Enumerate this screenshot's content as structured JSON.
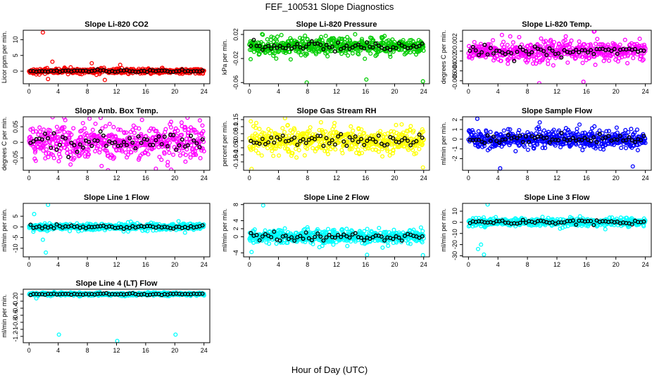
{
  "figure": {
    "title": "FEF_100531  Slope Diagnostics",
    "xlabel": "Hour of Day (UTC)"
  },
  "chart_data": [
    {
      "type": "scatter",
      "title": "Slope Li-820 CO2",
      "ylabel": "Licor ppm per min.",
      "xlim": [
        -0.8,
        24.8
      ],
      "ylim": [
        -4,
        13
      ],
      "xticks": [
        0,
        4,
        8,
        12,
        16,
        20,
        24
      ],
      "yticks": [
        0,
        5,
        10
      ],
      "spread": 0.45,
      "outliers": [
        [
          1.9,
          12.3
        ],
        [
          2.6,
          -2.5
        ],
        [
          3.2,
          3
        ],
        [
          8.6,
          2.5
        ],
        [
          10.4,
          -2.8
        ],
        [
          12.5,
          2
        ]
      ],
      "color": "#ff0000",
      "series": [
        {
          "name": "all"
        },
        {
          "name": "hourly"
        }
      ]
    },
    {
      "type": "scatter",
      "title": "Slope Li-820 Pressure",
      "ylabel": "kPa per min.",
      "xlim": [
        -0.8,
        24.8
      ],
      "ylim": [
        -0.062,
        0.027
      ],
      "xticks": [
        0,
        4,
        8,
        12,
        16,
        20,
        24
      ],
      "yticks": [
        -0.06,
        -0.02,
        0.02
      ],
      "spread": 0.008,
      "outliers": [
        [
          7.9,
          -0.06
        ],
        [
          16.1,
          -0.055
        ],
        [
          23.9,
          -0.058
        ]
      ],
      "color": "#00cc00",
      "series": [
        {
          "name": "all"
        },
        {
          "name": "hourly"
        }
      ]
    },
    {
      "type": "scatter",
      "title": "Slope Li-820 Temp.",
      "ylabel": "degrees C per min.",
      "xlim": [
        -0.8,
        24.8
      ],
      "ylim": [
        -0.0066,
        0.0042
      ],
      "xticks": [
        0,
        4,
        8,
        12,
        16,
        20,
        24
      ],
      "yticks": [
        -0.006,
        -0.004,
        -0.002,
        0.0,
        0.002
      ],
      "spread": 0.0012,
      "outliers": [
        [
          17.1,
          0.004
        ],
        [
          9.6,
          -0.0065
        ],
        [
          15.6,
          -0.0062
        ],
        [
          0.8,
          0.0018
        ]
      ],
      "color": "#ff00ff",
      "series": [
        {
          "name": "all"
        },
        {
          "name": "hourly"
        }
      ]
    },
    {
      "type": "scatter",
      "title": "Slope Amb. Box Temp.",
      "ylabel": "degrees C per min.",
      "xlim": [
        -0.8,
        24.8
      ],
      "ylim": [
        -0.09,
        0.082
      ],
      "xticks": [
        0,
        4,
        8,
        12,
        16,
        20,
        24
      ],
      "yticks": [
        -0.05,
        0.0,
        0.05
      ],
      "spread": 0.035,
      "outliers": [
        [
          4.8,
          0.08
        ],
        [
          19.5,
          -0.088
        ],
        [
          17.4,
          -0.085
        ]
      ],
      "color": "#ff00ff",
      "series": [
        {
          "name": "all"
        },
        {
          "name": "hourly"
        }
      ]
    },
    {
      "type": "scatter",
      "title": "Slope Gas Stream RH",
      "ylabel": "percent per min.",
      "xlim": [
        -0.8,
        24.8
      ],
      "ylim": [
        -0.21,
        0.17
      ],
      "xticks": [
        0,
        4,
        8,
        12,
        16,
        20,
        24
      ],
      "yticks": [
        -0.15,
        -0.1,
        -0.05,
        0.0,
        0.05,
        0.1,
        0.15
      ],
      "spread": 0.05,
      "outliers": [
        [
          0.3,
          -0.2
        ],
        [
          4.9,
          0.16
        ],
        [
          23.9,
          -0.19
        ]
      ],
      "color": "#ffff00",
      "series": [
        {
          "name": "all"
        },
        {
          "name": "hourly"
        }
      ]
    },
    {
      "type": "scatter",
      "title": "Slope Sample Flow",
      "ylabel": "ml/min per min.",
      "xlim": [
        -0.8,
        24.8
      ],
      "ylim": [
        -3.2,
        2.3
      ],
      "xticks": [
        0,
        4,
        8,
        12,
        16,
        20,
        24
      ],
      "yticks": [
        -2,
        -1,
        0,
        1,
        2
      ],
      "spread": 0.55,
      "outliers": [
        [
          1.2,
          2.1
        ],
        [
          4.3,
          -3
        ],
        [
          22.3,
          -2.8
        ]
      ],
      "color": "#0000ff",
      "series": [
        {
          "name": "all"
        },
        {
          "name": "hourly"
        }
      ]
    },
    {
      "type": "scatter",
      "title": "Slope Line 1 Flow",
      "ylabel": "ml/min per min.",
      "xlim": [
        -0.8,
        24.8
      ],
      "ylim": [
        -14,
        11
      ],
      "xticks": [
        0,
        4,
        8,
        12,
        16,
        20,
        24
      ],
      "yticks": [
        -10,
        -5,
        0,
        5
      ],
      "spread": 0.9,
      "outliers": [
        [
          2.6,
          10.3
        ],
        [
          2.3,
          -12
        ],
        [
          1.9,
          -6
        ],
        [
          0.7,
          6
        ]
      ],
      "color": "#00ffff",
      "series": [
        {
          "name": "all"
        },
        {
          "name": "hourly"
        }
      ]
    },
    {
      "type": "scatter",
      "title": "Slope Line 2 Flow",
      "ylabel": "ml/min per min.",
      "xlim": [
        -0.8,
        24.8
      ],
      "ylim": [
        -5,
        8.3
      ],
      "xticks": [
        0,
        4,
        8,
        12,
        16,
        20,
        24
      ],
      "yticks": [
        -4,
        0,
        2,
        4,
        8
      ],
      "spread": 1.0,
      "outliers": [
        [
          1.9,
          7.8
        ],
        [
          16.2,
          -4.5
        ],
        [
          0.3,
          -3.8
        ],
        [
          23.9,
          -4.6
        ]
      ],
      "color": "#00ffff",
      "series": [
        {
          "name": "all"
        },
        {
          "name": "hourly"
        }
      ]
    },
    {
      "type": "scatter",
      "title": "Slope Line 3 Flow",
      "ylabel": "ml/min per min.",
      "xlim": [
        -0.8,
        24.8
      ],
      "ylim": [
        -31,
        17
      ],
      "xticks": [
        0,
        4,
        8,
        12,
        16,
        20,
        24
      ],
      "yticks": [
        -30,
        -20,
        -10,
        0,
        10
      ],
      "spread": 2.0,
      "outliers": [
        [
          2.6,
          16
        ],
        [
          2.1,
          -29
        ],
        [
          1.3,
          -24
        ],
        [
          1.7,
          -20
        ]
      ],
      "color": "#00ffff",
      "series": [
        {
          "name": "all"
        },
        {
          "name": "hourly"
        }
      ]
    },
    {
      "type": "scatter",
      "title": "Slope Line 4 (LT) Flow",
      "ylabel": "ml/min per min.",
      "xlim": [
        -0.8,
        24.8
      ],
      "ylim": [
        -1.38,
        0.14
      ],
      "xticks": [
        0,
        4,
        8,
        12,
        16,
        20,
        24
      ],
      "yticks": [
        -1.2,
        -1.0,
        -0.8,
        -0.6,
        -0.4,
        -0.2,
        0.0
      ],
      "spread": 0.025,
      "outliers": [
        [
          4.1,
          -1.15
        ],
        [
          12.1,
          -1.33
        ],
        [
          20.1,
          -1.15
        ],
        [
          1,
          -0.12
        ]
      ],
      "color": "#00ffff",
      "series": [
        {
          "name": "all"
        },
        {
          "name": "hourly"
        }
      ]
    }
  ]
}
